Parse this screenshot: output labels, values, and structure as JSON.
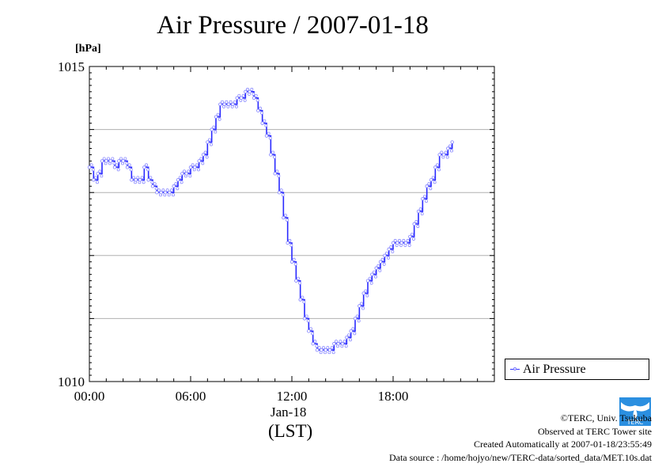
{
  "title": "Air Pressure / 2007-01-18",
  "unit_label": "[hPa]",
  "date_label": "Jan-18",
  "timezone_label": "(LST)",
  "legend_label": "Air Pressure",
  "credits": {
    "copyright": "©TERC, Univ. Tsukuba",
    "observed": "Observed at TERC Tower site",
    "created": "Created Automatically at 2007-01-18/23:55:49",
    "source": "Data source : /home/hojyo/new/TERC-data/sorted_data/MET.10s.dat"
  },
  "logo_text": "TERC",
  "colors": {
    "line": "#2a2aff",
    "marker": "#8080ff",
    "grid": "#b0b0b0"
  },
  "chart_data": {
    "type": "line",
    "title": "Air Pressure / 2007-01-18",
    "ylabel": "[hPa]",
    "xlabel": "(LST)",
    "ylim": [
      1010,
      1015
    ],
    "xlim_hours": [
      0,
      24
    ],
    "y_ticks": [
      "1015",
      "1010"
    ],
    "x_ticks": [
      {
        "hour": 0,
        "label": "00:00"
      },
      {
        "hour": 6,
        "label": "06:00"
      },
      {
        "hour": 12,
        "label": "12:00"
      },
      {
        "hour": 18,
        "label": "18:00"
      }
    ],
    "grid": "horizontal",
    "legend_position": "right",
    "series": [
      {
        "name": "Air Pressure",
        "points": [
          [
            0.0,
            1013.4
          ],
          [
            0.25,
            1013.2
          ],
          [
            0.5,
            1013.3
          ],
          [
            0.75,
            1013.5
          ],
          [
            1.0,
            1013.5
          ],
          [
            1.25,
            1013.5
          ],
          [
            1.5,
            1013.4
          ],
          [
            1.75,
            1013.5
          ],
          [
            2.0,
            1013.5
          ],
          [
            2.25,
            1013.4
          ],
          [
            2.5,
            1013.2
          ],
          [
            2.75,
            1013.2
          ],
          [
            3.0,
            1013.2
          ],
          [
            3.25,
            1013.4
          ],
          [
            3.5,
            1013.2
          ],
          [
            3.75,
            1013.1
          ],
          [
            4.0,
            1013.0
          ],
          [
            4.25,
            1013.0
          ],
          [
            4.5,
            1013.0
          ],
          [
            4.75,
            1013.0
          ],
          [
            5.0,
            1013.1
          ],
          [
            5.25,
            1013.2
          ],
          [
            5.5,
            1013.3
          ],
          [
            5.75,
            1013.3
          ],
          [
            6.0,
            1013.4
          ],
          [
            6.25,
            1013.4
          ],
          [
            6.5,
            1013.5
          ],
          [
            6.75,
            1013.6
          ],
          [
            7.0,
            1013.8
          ],
          [
            7.25,
            1014.0
          ],
          [
            7.5,
            1014.2
          ],
          [
            7.75,
            1014.4
          ],
          [
            8.0,
            1014.4
          ],
          [
            8.25,
            1014.4
          ],
          [
            8.5,
            1014.4
          ],
          [
            8.75,
            1014.5
          ],
          [
            9.0,
            1014.5
          ],
          [
            9.25,
            1014.6
          ],
          [
            9.5,
            1014.6
          ],
          [
            9.75,
            1014.5
          ],
          [
            10.0,
            1014.3
          ],
          [
            10.25,
            1014.1
          ],
          [
            10.5,
            1013.9
          ],
          [
            10.75,
            1013.6
          ],
          [
            11.0,
            1013.3
          ],
          [
            11.25,
            1013.0
          ],
          [
            11.5,
            1012.6
          ],
          [
            11.75,
            1012.2
          ],
          [
            12.0,
            1011.9
          ],
          [
            12.25,
            1011.6
          ],
          [
            12.5,
            1011.3
          ],
          [
            12.75,
            1011.0
          ],
          [
            13.0,
            1010.8
          ],
          [
            13.25,
            1010.6
          ],
          [
            13.5,
            1010.5
          ],
          [
            13.75,
            1010.5
          ],
          [
            14.0,
            1010.5
          ],
          [
            14.25,
            1010.5
          ],
          [
            14.5,
            1010.6
          ],
          [
            14.75,
            1010.6
          ],
          [
            15.0,
            1010.6
          ],
          [
            15.25,
            1010.7
          ],
          [
            15.5,
            1010.8
          ],
          [
            15.75,
            1011.0
          ],
          [
            16.0,
            1011.2
          ],
          [
            16.25,
            1011.4
          ],
          [
            16.5,
            1011.6
          ],
          [
            16.75,
            1011.7
          ],
          [
            17.0,
            1011.8
          ],
          [
            17.25,
            1011.9
          ],
          [
            17.5,
            1012.0
          ],
          [
            17.75,
            1012.1
          ],
          [
            18.0,
            1012.2
          ],
          [
            18.25,
            1012.2
          ],
          [
            18.5,
            1012.2
          ],
          [
            18.75,
            1012.2
          ],
          [
            19.0,
            1012.3
          ],
          [
            19.25,
            1012.5
          ],
          [
            19.5,
            1012.7
          ],
          [
            19.75,
            1012.9
          ],
          [
            20.0,
            1013.1
          ],
          [
            20.25,
            1013.2
          ],
          [
            20.5,
            1013.4
          ],
          [
            20.75,
            1013.6
          ],
          [
            21.0,
            1013.6
          ],
          [
            21.25,
            1013.7
          ],
          [
            21.5,
            1013.8
          ]
        ]
      }
    ]
  }
}
